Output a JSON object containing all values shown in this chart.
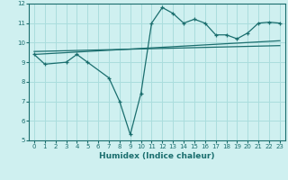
{
  "xlabel": "Humidex (Indice chaleur)",
  "background_color": "#cff0f0",
  "grid_color": "#aadddd",
  "line_color": "#1a6e6e",
  "xlim": [
    -0.5,
    23.5
  ],
  "ylim": [
    5,
    12
  ],
  "yticks": [
    5,
    6,
    7,
    8,
    9,
    10,
    11,
    12
  ],
  "xticks": [
    0,
    1,
    2,
    3,
    4,
    5,
    6,
    7,
    8,
    9,
    10,
    11,
    12,
    13,
    14,
    15,
    16,
    17,
    18,
    19,
    20,
    21,
    22,
    23
  ],
  "line1_x": [
    0,
    1,
    3,
    4,
    5,
    7,
    8,
    9,
    10,
    11,
    12,
    13,
    14,
    15,
    16,
    17,
    18,
    19,
    20,
    21,
    22,
    23
  ],
  "line1_y": [
    9.4,
    8.9,
    9.0,
    9.4,
    9.0,
    8.2,
    7.0,
    5.3,
    7.4,
    11.0,
    11.8,
    11.5,
    11.0,
    11.2,
    11.0,
    10.4,
    10.4,
    10.2,
    10.5,
    11.0,
    11.05,
    11.0
  ],
  "line2_x": [
    0,
    23
  ],
  "line2_y": [
    9.4,
    10.1
  ],
  "line3_x": [
    0,
    23
  ],
  "line3_y": [
    9.55,
    9.85
  ]
}
